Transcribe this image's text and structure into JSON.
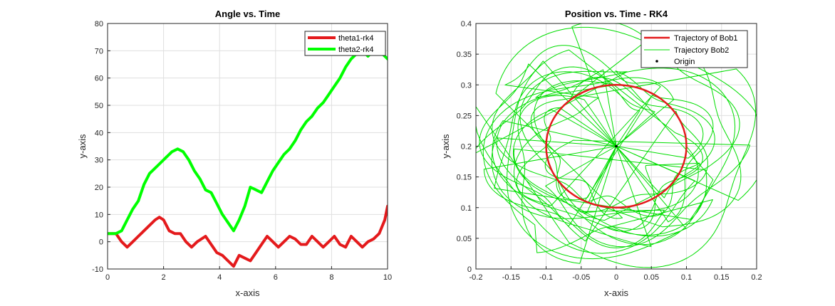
{
  "chart_data": [
    {
      "type": "line",
      "title": "Angle vs. Time",
      "xlabel": "x-axis",
      "ylabel": "y-axis",
      "xlim": [
        0,
        10
      ],
      "ylim": [
        -10,
        80
      ],
      "xticks": [
        0,
        2,
        4,
        6,
        8,
        10
      ],
      "yticks": [
        -10,
        0,
        10,
        20,
        30,
        40,
        50,
        60,
        70,
        80
      ],
      "grid": true,
      "legend_position": "top-right",
      "series": [
        {
          "name": "theta1-rk4",
          "color": "#e41a1c",
          "x": [
            0,
            0.3,
            0.5,
            0.7,
            0.9,
            1.1,
            1.3,
            1.5,
            1.7,
            1.85,
            2.0,
            2.2,
            2.4,
            2.6,
            2.8,
            3.0,
            3.2,
            3.5,
            3.7,
            3.9,
            4.1,
            4.3,
            4.5,
            4.7,
            4.9,
            5.1,
            5.3,
            5.5,
            5.7,
            5.9,
            6.1,
            6.3,
            6.5,
            6.7,
            6.9,
            7.1,
            7.3,
            7.5,
            7.7,
            7.9,
            8.1,
            8.3,
            8.5,
            8.7,
            8.9,
            9.1,
            9.3,
            9.5,
            9.7,
            9.9,
            10.0
          ],
          "y": [
            3,
            3,
            0,
            -2,
            0,
            2,
            4,
            6,
            8,
            9,
            8,
            4,
            3,
            3,
            0,
            -2,
            0,
            2,
            -1,
            -4,
            -5,
            -7,
            -9,
            -5,
            -6,
            -7,
            -4,
            -1,
            2,
            0,
            -2,
            0,
            2,
            1,
            -1,
            -1,
            2,
            0,
            -2,
            0,
            2,
            -1,
            -2,
            2,
            0,
            -2,
            0,
            1,
            3,
            8,
            13
          ]
        },
        {
          "name": "theta2-rk4",
          "color": "#00ff00",
          "x": [
            0,
            0.3,
            0.5,
            0.7,
            0.9,
            1.1,
            1.3,
            1.5,
            1.7,
            1.9,
            2.1,
            2.3,
            2.5,
            2.7,
            2.9,
            3.1,
            3.3,
            3.5,
            3.7,
            3.9,
            4.1,
            4.3,
            4.5,
            4.7,
            4.9,
            5.1,
            5.3,
            5.5,
            5.7,
            5.9,
            6.1,
            6.3,
            6.5,
            6.7,
            6.9,
            7.1,
            7.3,
            7.5,
            7.7,
            7.9,
            8.1,
            8.3,
            8.5,
            8.7,
            8.9,
            9.1,
            9.3,
            9.5,
            9.7,
            9.9,
            10.0
          ],
          "y": [
            3,
            3,
            4,
            8,
            12,
            15,
            21,
            25,
            27,
            29,
            31,
            33,
            34,
            33,
            30,
            26,
            23,
            19,
            18,
            14,
            10,
            7,
            4,
            8,
            13,
            20,
            19,
            18,
            22,
            26,
            29,
            32,
            34,
            37,
            41,
            44,
            46,
            49,
            51,
            54,
            57,
            60,
            64,
            67,
            69,
            70,
            68,
            70,
            70,
            68,
            67
          ]
        }
      ]
    },
    {
      "type": "line",
      "title": "Position vs. Time - RK4",
      "xlabel": "x-axis",
      "ylabel": "y-axis",
      "xlim": [
        -0.2,
        0.2
      ],
      "ylim": [
        0,
        0.4
      ],
      "xticks": [
        -0.2,
        -0.15,
        -0.1,
        -0.05,
        0,
        0.05,
        0.1,
        0.15,
        0.2
      ],
      "yticks": [
        0,
        0.05,
        0.1,
        0.15,
        0.2,
        0.25,
        0.3,
        0.35,
        0.4
      ],
      "grid": true,
      "legend_position": "top-right",
      "series": [
        {
          "name": "Trajectory of Bob1",
          "color": "#e41a1c",
          "shape": "circle",
          "center": [
            0,
            0.2
          ],
          "radius": 0.1
        },
        {
          "name": "Trajectory Bob2",
          "color": "#00dd00",
          "shape": "chaotic-orbit",
          "center": [
            0,
            0.2
          ],
          "xrange": [
            -0.2,
            0.2
          ],
          "yrange": [
            0,
            0.4
          ]
        },
        {
          "name": "Origin",
          "color": "#000000",
          "marker": "point",
          "x": [
            0
          ],
          "y": [
            0.2
          ]
        }
      ]
    }
  ]
}
